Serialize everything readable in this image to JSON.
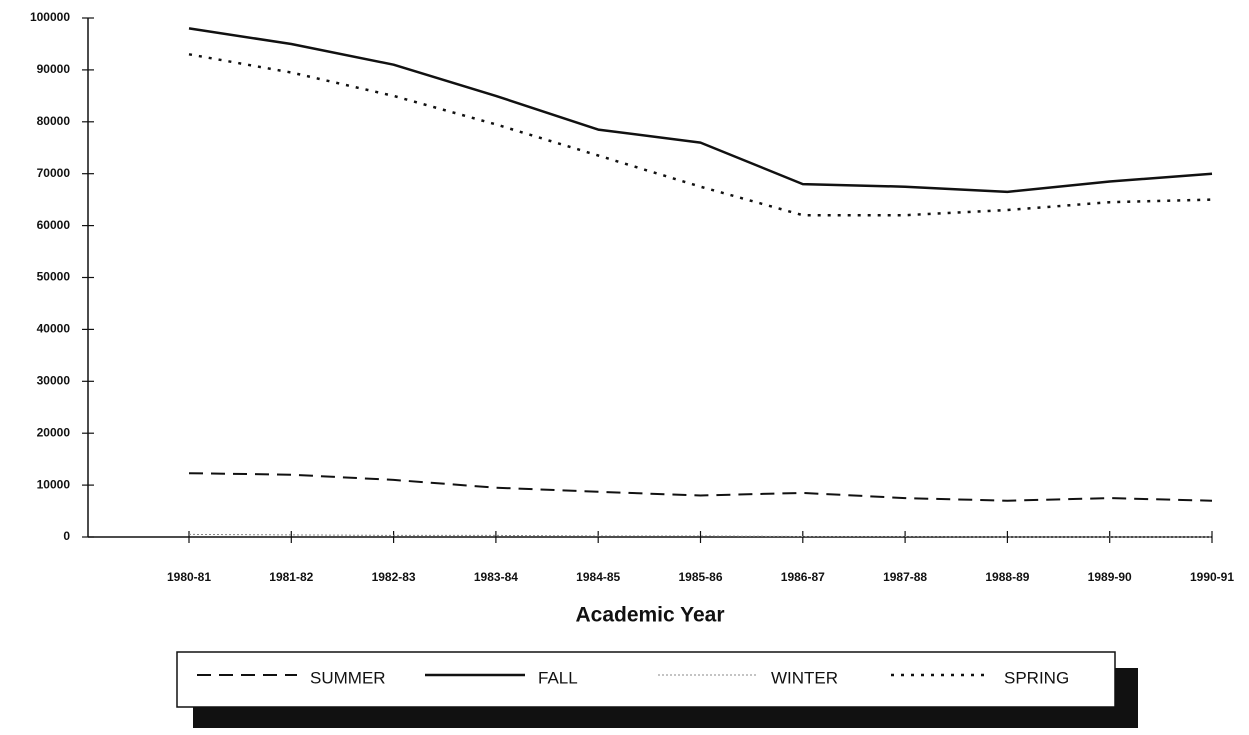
{
  "chart_data": {
    "type": "line",
    "x_label": "Academic Year",
    "categories": [
      "1980-81",
      "1981-82",
      "1982-83",
      "1983-84",
      "1984-85",
      "1985-86",
      "1986-87",
      "1987-88",
      "1988-89",
      "1989-90",
      "1990-91"
    ],
    "series": [
      {
        "name": "SUMMER",
        "color": "#111111",
        "style": "dashed",
        "values": [
          12300,
          12000,
          11000,
          9500,
          8700,
          8000,
          8500,
          7500,
          7000,
          7500,
          7000
        ]
      },
      {
        "name": "FALL",
        "color": "#111111",
        "style": "solid",
        "values": [
          98000,
          95000,
          91000,
          85000,
          78500,
          76000,
          68000,
          67500,
          66500,
          68500,
          70000
        ]
      },
      {
        "name": "WINTER",
        "color": "#888888",
        "style": "thin",
        "values": [
          500,
          400,
          300,
          300,
          200,
          200,
          100,
          100,
          0,
          0,
          0
        ]
      },
      {
        "name": "SPRING",
        "color": "#111111",
        "style": "dotted",
        "values": [
          93000,
          89500,
          85000,
          79500,
          73500,
          67500,
          62000,
          62000,
          63000,
          64500,
          65000
        ]
      }
    ],
    "ylim": [
      0,
      100000
    ],
    "yticks": [
      0,
      10000,
      20000,
      30000,
      40000,
      50000,
      60000,
      70000,
      80000,
      90000,
      100000
    ],
    "grid": false,
    "legend": "bottom"
  }
}
